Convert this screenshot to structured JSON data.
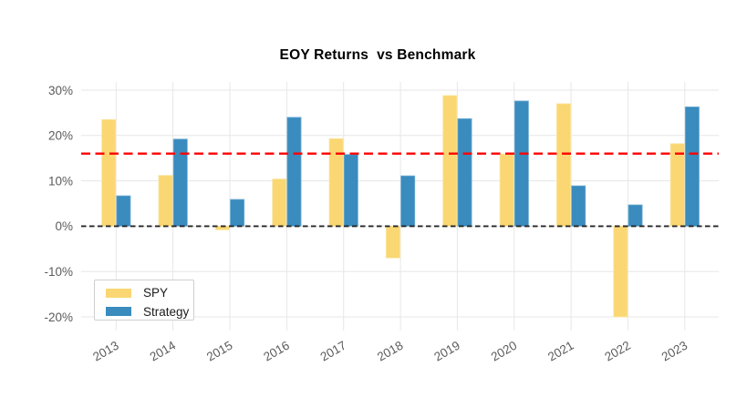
{
  "chart_data": {
    "type": "bar",
    "title": "EOY Returns  vs Benchmark",
    "categories": [
      "2013",
      "2014",
      "2015",
      "2016",
      "2017",
      "2018",
      "2019",
      "2020",
      "2021",
      "2022",
      "2023"
    ],
    "series": [
      {
        "name": "SPY",
        "color": "#FAD772",
        "edge": "#FCE6A3",
        "values": [
          23.5,
          11.2,
          -0.8,
          10.4,
          19.3,
          -7.0,
          28.8,
          15.9,
          27.0,
          -20.0,
          18.2
        ]
      },
      {
        "name": "Strategy",
        "color": "#3A8BBE",
        "edge": "#74AFD4",
        "values": [
          6.7,
          19.2,
          5.9,
          24.0,
          15.8,
          11.1,
          23.7,
          27.6,
          8.9,
          4.7,
          26.3
        ]
      }
    ],
    "xlabel": "",
    "ylabel": "",
    "yticks": [
      30,
      20,
      10,
      0,
      -10,
      -20
    ],
    "ytick_suffix": "%",
    "ylim": [
      -22.4,
      31.8
    ],
    "grid": true,
    "legend_position": "lower-left",
    "reference_lines": [
      {
        "name": "benchmark-line",
        "value": 16,
        "color": "#FF0000",
        "style": "dashed"
      },
      {
        "name": "zero-line",
        "value": 0,
        "color": "#262626",
        "style": "dashed"
      }
    ],
    "styles": {
      "gridline_color": "#e7e7e7",
      "tick_label_color": "#5b5b5b",
      "background": "#ffffff"
    }
  }
}
